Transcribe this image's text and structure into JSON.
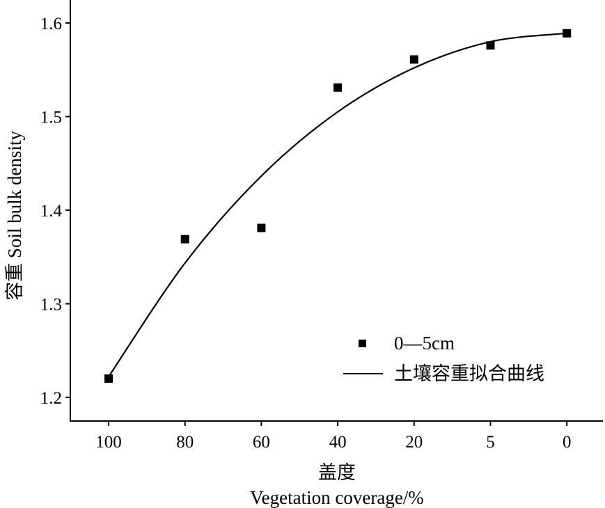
{
  "chart_data": {
    "type": "scatter",
    "title": "",
    "xlabel_cn": "盖度",
    "xlabel_en": "Vegetation coverage/%",
    "ylabel": "容重 Soil bulk density",
    "categories": [
      "100",
      "80",
      "60",
      "40",
      "20",
      "5",
      "0"
    ],
    "ylim": [
      1.165,
      1.625
    ],
    "yticks": [
      "1.2",
      "1.3",
      "1.4",
      "1.5",
      "1.6"
    ],
    "grid": false,
    "legend_position": "bottom-right",
    "series": [
      {
        "name": "0—5cm",
        "kind": "points",
        "marker": "square",
        "color": "#000000",
        "values": [
          1.22,
          1.369,
          1.381,
          1.531,
          1.561,
          1.576,
          1.589
        ]
      },
      {
        "name": "土壤容重拟合曲线",
        "kind": "line",
        "color": "#000000",
        "values": [
          1.222,
          1.3435,
          1.4365,
          1.505,
          1.552,
          1.58,
          1.589
        ]
      }
    ]
  }
}
